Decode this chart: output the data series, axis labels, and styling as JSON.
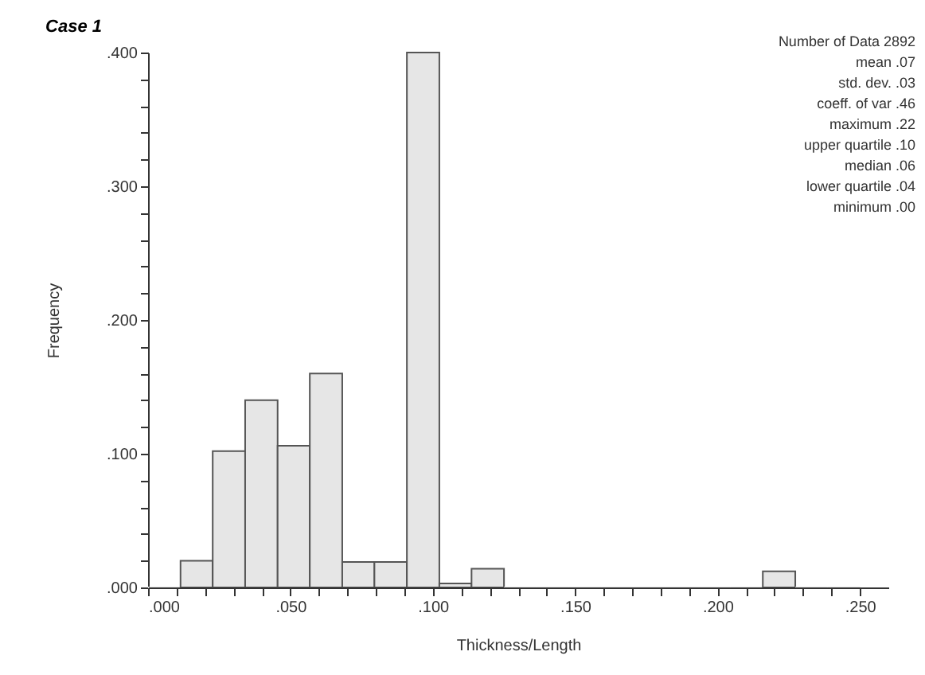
{
  "chart_data": {
    "type": "histogram",
    "title": "Case 1",
    "xlabel": "Thickness/Length",
    "ylabel": "Frequency",
    "bins": [
      0,
      0.0114,
      0.0227,
      0.0341,
      0.0455,
      0.0568,
      0.0682,
      0.0795,
      0.0909,
      0.1023,
      0.1136,
      0.125,
      0.1364,
      0.1477,
      0.1591,
      0.1705,
      0.1818,
      0.1932,
      0.2045,
      0.2159,
      0.2273,
      0.2386,
      0.25
    ],
    "values": [
      0,
      0.02,
      0.102,
      0.14,
      0.106,
      0.16,
      0.019,
      0.019,
      0.4,
      0.003,
      0.014,
      0,
      0,
      0,
      0,
      0,
      0,
      0,
      0,
      0.012,
      0,
      0
    ],
    "color": "#e6e6e6",
    "xlim": [
      0,
      0.26
    ],
    "ylim": [
      0,
      0.4
    ],
    "xticks": [
      {
        "value": 0,
        "label": ".000"
      },
      {
        "value": 0.01,
        "label": null
      },
      {
        "value": 0.02,
        "label": null
      },
      {
        "value": 0.03,
        "label": null
      },
      {
        "value": 0.04,
        "label": null
      },
      {
        "value": 0.05,
        "label": ".050"
      },
      {
        "value": 0.06,
        "label": null
      },
      {
        "value": 0.07,
        "label": null
      },
      {
        "value": 0.08,
        "label": null
      },
      {
        "value": 0.09,
        "label": null
      },
      {
        "value": 0.1,
        "label": ".100"
      },
      {
        "value": 0.11,
        "label": null
      },
      {
        "value": 0.12,
        "label": null
      },
      {
        "value": 0.13,
        "label": null
      },
      {
        "value": 0.14,
        "label": null
      },
      {
        "value": 0.15,
        "label": ".150"
      },
      {
        "value": 0.16,
        "label": null
      },
      {
        "value": 0.17,
        "label": null
      },
      {
        "value": 0.18,
        "label": null
      },
      {
        "value": 0.19,
        "label": null
      },
      {
        "value": 0.2,
        "label": ".200"
      },
      {
        "value": 0.21,
        "label": null
      },
      {
        "value": 0.22,
        "label": null
      },
      {
        "value": 0.23,
        "label": null
      },
      {
        "value": 0.24,
        "label": null
      },
      {
        "value": 0.25,
        "label": ".250"
      }
    ],
    "yticks": [
      {
        "value": 0,
        "label": ".000"
      },
      {
        "value": 0.02,
        "label": null
      },
      {
        "value": 0.04,
        "label": null
      },
      {
        "value": 0.06,
        "label": null
      },
      {
        "value": 0.08,
        "label": null
      },
      {
        "value": 0.1,
        "label": ".100"
      },
      {
        "value": 0.12,
        "label": null
      },
      {
        "value": 0.14,
        "label": null
      },
      {
        "value": 0.16,
        "label": null
      },
      {
        "value": 0.18,
        "label": null
      },
      {
        "value": 0.2,
        "label": ".200"
      },
      {
        "value": 0.22,
        "label": null
      },
      {
        "value": 0.24,
        "label": null
      },
      {
        "value": 0.26,
        "label": null
      },
      {
        "value": 0.28,
        "label": null
      },
      {
        "value": 0.3,
        "label": ".300"
      },
      {
        "value": 0.32,
        "label": null
      },
      {
        "value": 0.34,
        "label": null
      },
      {
        "value": 0.36,
        "label": null
      },
      {
        "value": 0.38,
        "label": null
      },
      {
        "value": 0.4,
        "label": ".400"
      }
    ],
    "annotations": [
      "Number of Data  2892",
      "mean  .07",
      "std. dev.  .03",
      "coeff. of var  .46",
      "maximum  .22",
      "upper quartile  .10",
      "median  .06",
      "lower quartile  .04",
      "minimum  .00"
    ]
  }
}
